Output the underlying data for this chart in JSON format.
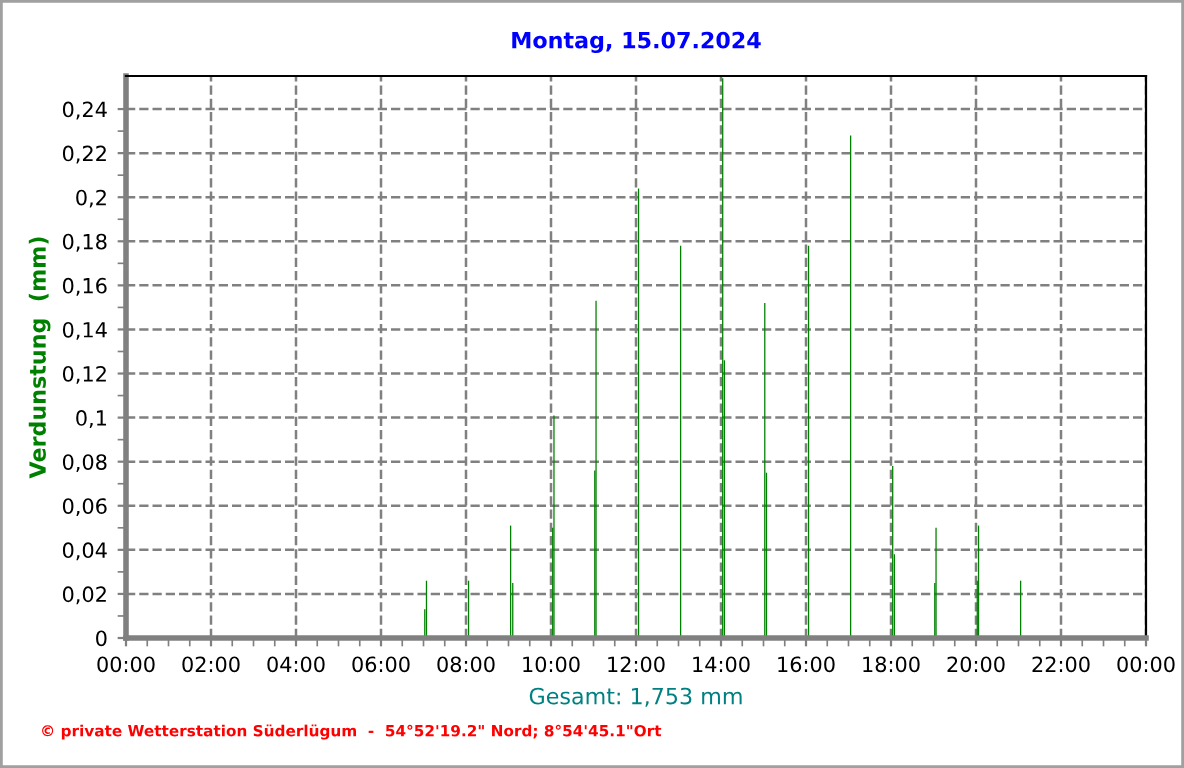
{
  "chart_data": {
    "type": "bar",
    "title": "Montag, 15.07.2024",
    "ylabel": "Verdunstung  (mm)",
    "x": [
      7.03,
      7.07,
      8.06,
      9.05,
      9.1,
      10.04,
      10.07,
      11.03,
      11.06,
      12.06,
      13.05,
      14.04,
      14.08,
      15.03,
      15.07,
      16.06,
      17.05,
      18.04,
      18.08,
      19.03,
      19.06,
      20.03,
      20.06,
      21.05
    ],
    "values": [
      0.013,
      0.026,
      0.026,
      0.051,
      0.025,
      0.05,
      0.101,
      0.076,
      0.153,
      0.204,
      0.178,
      0.254,
      0.126,
      0.152,
      0.075,
      0.178,
      0.228,
      0.078,
      0.038,
      0.025,
      0.05,
      0.026,
      0.051,
      0.026
    ],
    "color": "#008000",
    "xlim": [
      0,
      24
    ],
    "xticks": [
      {
        "value": 0,
        "label": "00:00"
      },
      {
        "value": 2,
        "label": "02:00"
      },
      {
        "value": 4,
        "label": "04:00"
      },
      {
        "value": 6,
        "label": "06:00"
      },
      {
        "value": 8,
        "label": "08:00"
      },
      {
        "value": 10,
        "label": "10:00"
      },
      {
        "value": 12,
        "label": "12:00"
      },
      {
        "value": 14,
        "label": "14:00"
      },
      {
        "value": 16,
        "label": "16:00"
      },
      {
        "value": 18,
        "label": "18:00"
      },
      {
        "value": 20,
        "label": "20:00"
      },
      {
        "value": 22,
        "label": "22:00"
      },
      {
        "value": 24,
        "label": "00:00"
      }
    ],
    "ylim": [
      0,
      0.255
    ],
    "yticks": [
      0,
      {
        "value": 0.02,
        "label": "0,02"
      },
      {
        "value": 0.04,
        "label": "0,04"
      },
      {
        "value": 0.06,
        "label": "0,06"
      },
      {
        "value": 0.08,
        "label": "0,08"
      },
      {
        "value": 0.1,
        "label": "0,1"
      },
      {
        "value": 0.12,
        "label": "0,12"
      },
      {
        "value": 0.14,
        "label": "0,14"
      },
      {
        "value": 0.16,
        "label": "0,16"
      },
      {
        "value": 0.18,
        "label": "0,18"
      },
      {
        "value": 0.2,
        "label": "0,2"
      },
      {
        "value": 0.22,
        "label": "0,22"
      },
      {
        "value": 0.24,
        "label": "0,24"
      }
    ],
    "grid": true,
    "line_style": "dashed",
    "annotations": [
      "Gesamt: 1,753 mm",
      "© private Wetterstation Süderlügum  -  54°52'19.2\" Nord; 8°54'45.1\"Ort"
    ]
  }
}
